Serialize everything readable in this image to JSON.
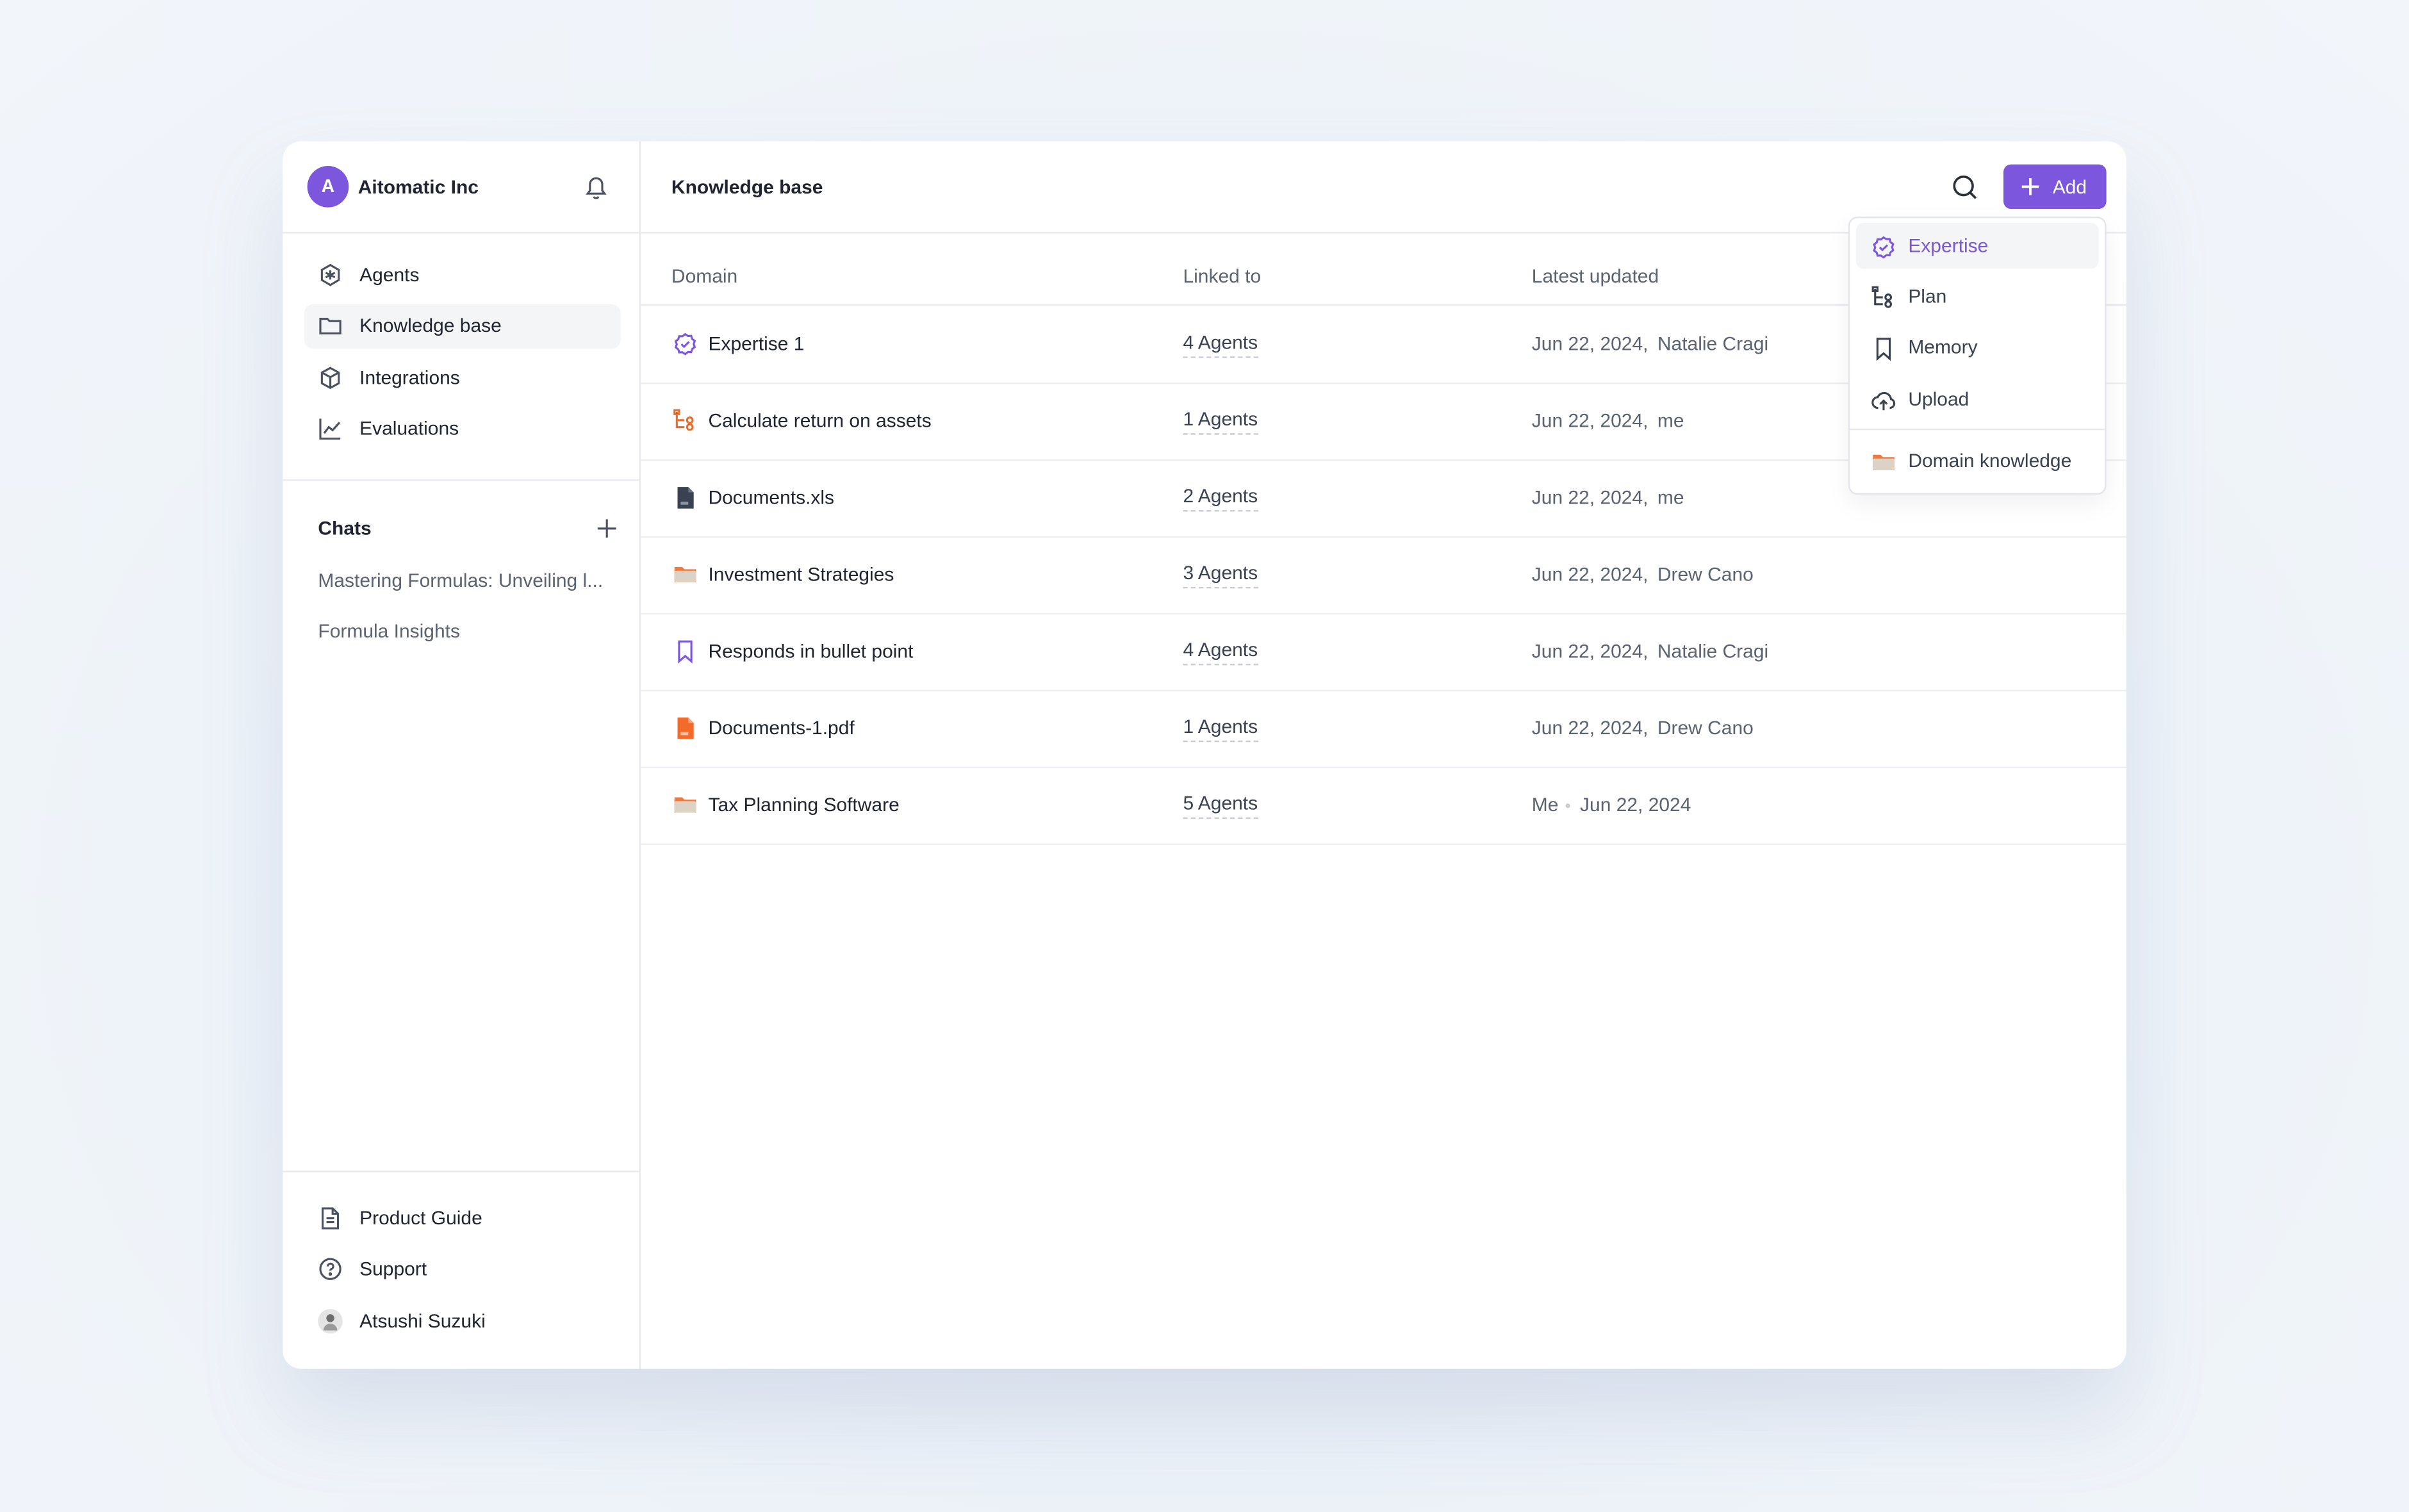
{
  "header": {
    "avatar": "A",
    "org": "Aitomatic Inc",
    "title": "Knowledge base",
    "add_button": "Add"
  },
  "sidebar": {
    "nav": [
      "Agents",
      "Knowledge base",
      "Integrations",
      "Evaluations"
    ],
    "chats_title": "Chats",
    "chats": [
      "Mastering Formulas: Unveiling l...",
      "Formula Insights"
    ],
    "footer": [
      "Product Guide",
      "Support",
      "Atsushi Suzuki"
    ]
  },
  "table": {
    "columns": [
      "Domain",
      "Linked to",
      "Latest updated"
    ],
    "rows": [
      [
        "Expertise 1",
        "4 Agents",
        "Jun 22, 2024,",
        "Natalie Cragi"
      ],
      [
        "Calculate return on assets",
        "1 Agents",
        "Jun 22, 2024,",
        "me"
      ],
      [
        "Documents.xls",
        "2 Agents",
        "Jun 22, 2024,",
        "me"
      ],
      [
        "Investment Strategies",
        "3 Agents",
        "Jun 22, 2024,",
        "Drew Cano"
      ],
      [
        "Responds in bullet point",
        "4 Agents",
        "Jun 22, 2024,",
        "Natalie Cragi"
      ],
      [
        "Documents-1.pdf",
        "1 Agents",
        "Jun 22, 2024,",
        "Drew Cano"
      ],
      [
        "Tax Planning Software",
        "5 Agents",
        "Me",
        "Jun 22, 2024"
      ]
    ]
  },
  "menu": {
    "items": [
      "Expertise",
      "Plan",
      "Memory",
      "Upload",
      "Domain knowledge"
    ]
  }
}
